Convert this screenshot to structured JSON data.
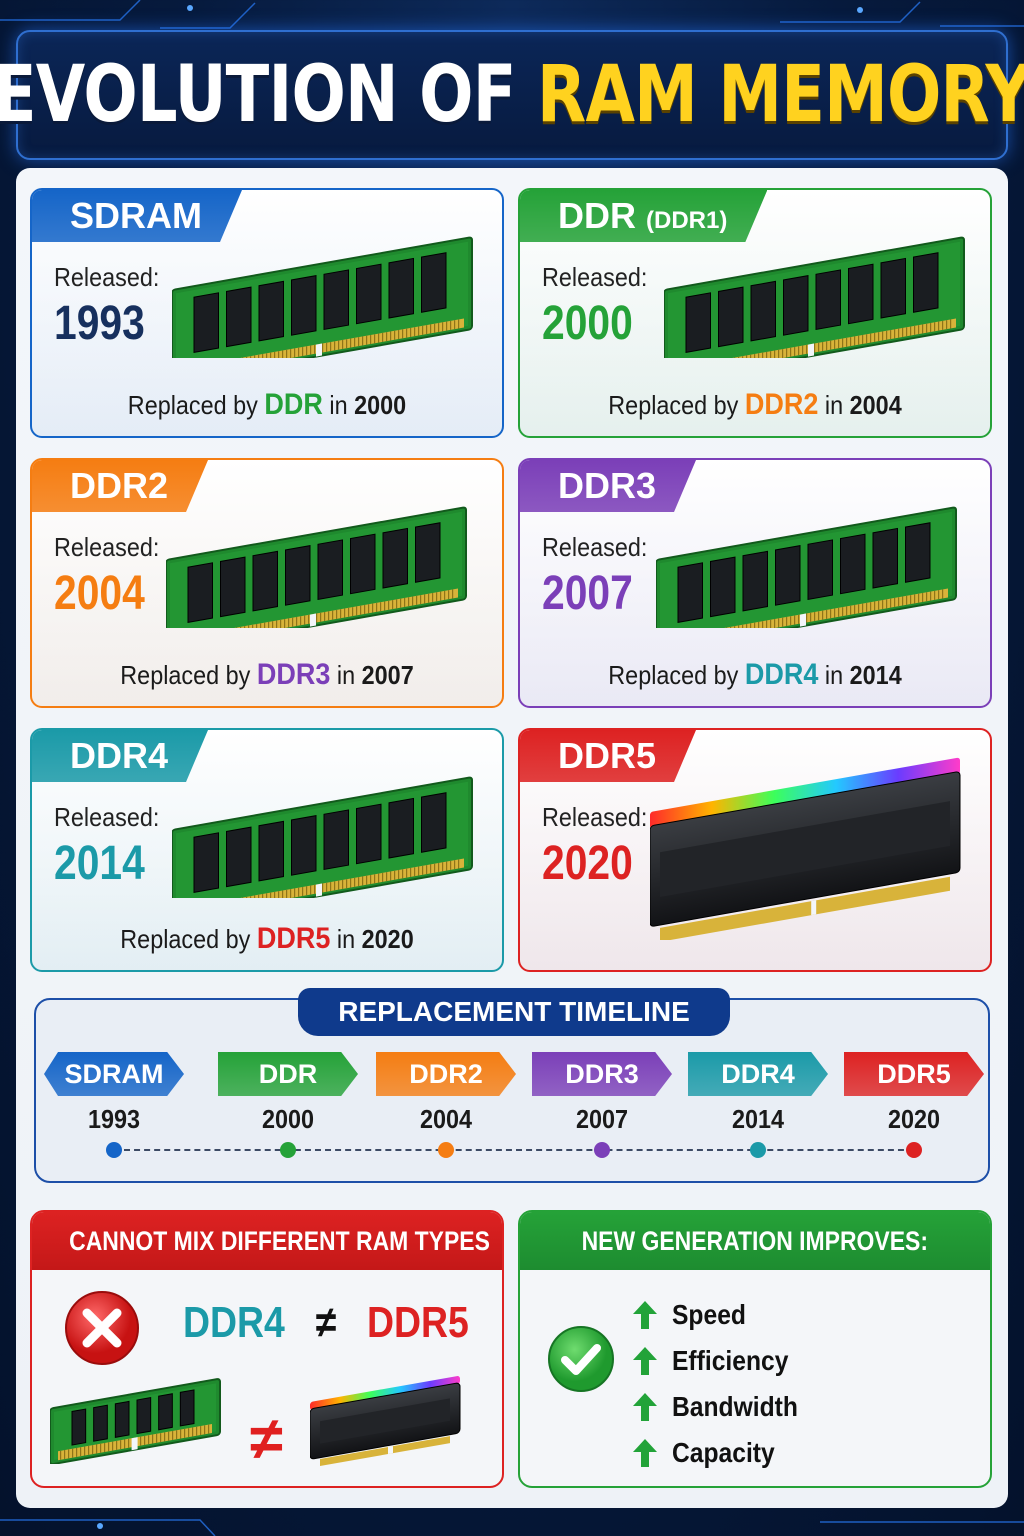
{
  "header": {
    "title_part1": "EVOLUTION OF",
    "title_part2": "RAM MEMORY"
  },
  "colors": {
    "sdram": "#1565c8",
    "ddr": "#25a238",
    "ddr2": "#f57d12",
    "ddr3": "#7b3fb8",
    "ddr4": "#1b9aa8",
    "ddr5": "#dd2222"
  },
  "cards": [
    {
      "name": "SDRAM",
      "suffix": "",
      "released_label": "Released:",
      "year": "1993",
      "replaced_prefix": "Replaced by",
      "replaced_by": "DDR",
      "replaced_in": "in",
      "replaced_year": "2000"
    },
    {
      "name": "DDR",
      "suffix": "(DDR1)",
      "released_label": "Released:",
      "year": "2000",
      "replaced_prefix": "Replaced by",
      "replaced_by": "DDR2",
      "replaced_in": "in",
      "replaced_year": "2004"
    },
    {
      "name": "DDR2",
      "suffix": "",
      "released_label": "Released:",
      "year": "2004",
      "replaced_prefix": "Replaced by",
      "replaced_by": "DDR3",
      "replaced_in": "in",
      "replaced_year": "2007"
    },
    {
      "name": "DDR3",
      "suffix": "",
      "released_label": "Released:",
      "year": "2007",
      "replaced_prefix": "Replaced by",
      "replaced_by": "DDR4",
      "replaced_in": "in",
      "replaced_year": "2014"
    },
    {
      "name": "DDR4",
      "suffix": "",
      "released_label": "Released:",
      "year": "2014",
      "replaced_prefix": "Replaced by",
      "replaced_by": "DDR5",
      "replaced_in": "in",
      "replaced_year": "2020"
    },
    {
      "name": "DDR5",
      "suffix": "",
      "released_label": "Released:",
      "year": "2020"
    }
  ],
  "timeline": {
    "title": "REPLACEMENT TIMELINE",
    "items": [
      {
        "label": "SDRAM",
        "year": "1993"
      },
      {
        "label": "DDR",
        "year": "2000"
      },
      {
        "label": "DDR2",
        "year": "2004"
      },
      {
        "label": "DDR3",
        "year": "2007"
      },
      {
        "label": "DDR4",
        "year": "2014"
      },
      {
        "label": "DDR5",
        "year": "2020"
      }
    ]
  },
  "mix_box": {
    "title": "CANNOT MIX DIFFERENT RAM TYPES",
    "left": "DDR4",
    "neq": "≠",
    "right": "DDR5"
  },
  "improve_box": {
    "title": "NEW GENERATION IMPROVES:",
    "items": [
      "Speed",
      "Efficiency",
      "Bandwidth",
      "Capacity"
    ]
  }
}
